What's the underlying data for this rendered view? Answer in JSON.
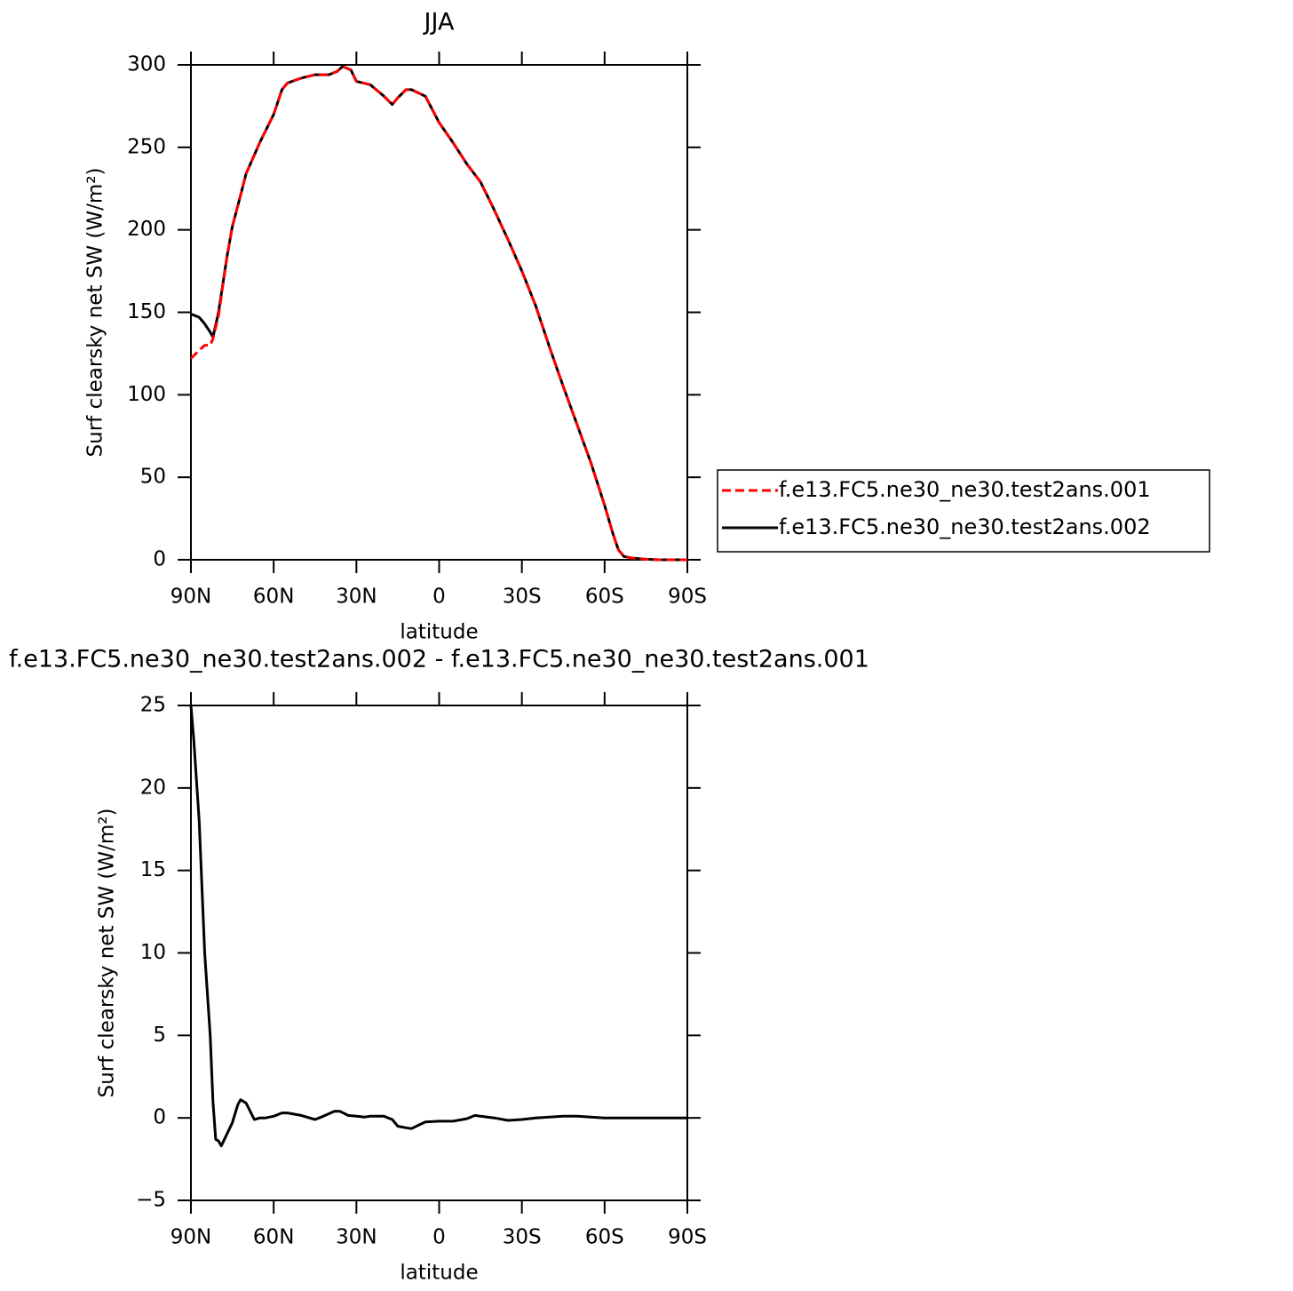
{
  "chart_data": [
    {
      "type": "line",
      "title": "JJA",
      "xlabel": "latitude",
      "ylabel": "Surf clearsky net SW (W/m²)",
      "xlim": [
        90,
        -90
      ],
      "xticks": [
        {
          "value": 90,
          "label": "90N"
        },
        {
          "value": 60,
          "label": "60N"
        },
        {
          "value": 30,
          "label": "30N"
        },
        0,
        {
          "value": -30,
          "label": "30S"
        },
        {
          "value": -60,
          "label": "60S"
        },
        {
          "value": -90,
          "label": "90S"
        }
      ],
      "ylim": [
        0,
        300
      ],
      "yticks": [
        0,
        50,
        100,
        150,
        200,
        250,
        300
      ],
      "legend": "right",
      "x": [
        90,
        87,
        85,
        83,
        82,
        80,
        77,
        75,
        72,
        70,
        65,
        60,
        57,
        55,
        50,
        45,
        40,
        37,
        35,
        32,
        30,
        25,
        20,
        17,
        15,
        12,
        10,
        5,
        0,
        -5,
        -10,
        -15,
        -20,
        -25,
        -30,
        -35,
        -40,
        -45,
        -50,
        -55,
        -60,
        -63,
        -65,
        -67,
        -70,
        -75,
        -80,
        -85,
        -90
      ],
      "series": [
        {
          "name": "f.e13.FC5.ne30_ne30.test2ans.001",
          "color": "#ff0000",
          "line_style": "dashed",
          "values": [
            122,
            127,
            130,
            130,
            134,
            148,
            183,
            202,
            221,
            234,
            253,
            270,
            285,
            289,
            292,
            294,
            294,
            296,
            299,
            297,
            290,
            288,
            281,
            276,
            280,
            285,
            285,
            281,
            265,
            253,
            240,
            229,
            212,
            194,
            175,
            154,
            129,
            105,
            82,
            59,
            33,
            16,
            6,
            2,
            1,
            0.3,
            0,
            0,
            0
          ]
        },
        {
          "name": "f.e13.FC5.ne30_ne30.test2ans.002",
          "color": "#000000",
          "line_style": "solid",
          "values": [
            149,
            147,
            143,
            138,
            135,
            150,
            183,
            202,
            221,
            234,
            253,
            270,
            285,
            289,
            292,
            294,
            294,
            296,
            299,
            297,
            290,
            288,
            281,
            276,
            280,
            285,
            285,
            281,
            265,
            253,
            240,
            229,
            212,
            194,
            175,
            154,
            129,
            105,
            82,
            59,
            33,
            16,
            6,
            2,
            1,
            0.3,
            0,
            0,
            0
          ]
        }
      ]
    },
    {
      "type": "line",
      "title": "f.e13.FC5.ne30_ne30.test2ans.002 - f.e13.FC5.ne30_ne30.test2ans.001",
      "xlabel": "latitude",
      "ylabel": "Surf clearsky net SW (W/m²)",
      "xlim": [
        90,
        -90
      ],
      "xticks": [
        {
          "value": 90,
          "label": "90N"
        },
        {
          "value": 60,
          "label": "60N"
        },
        {
          "value": 30,
          "label": "30N"
        },
        0,
        {
          "value": -30,
          "label": "30S"
        },
        {
          "value": -60,
          "label": "60S"
        },
        {
          "value": -90,
          "label": "90S"
        }
      ],
      "ylim": [
        -5,
        25
      ],
      "yticks": [
        {
          "value": -5,
          "label": "−5"
        },
        0,
        5,
        10,
        15,
        20,
        25
      ],
      "color": "#000000",
      "x": [
        90,
        89,
        87,
        85,
        83,
        82,
        81,
        80,
        79,
        77,
        75,
        73,
        72,
        70,
        67,
        65,
        63,
        60,
        57,
        55,
        50,
        45,
        42,
        38,
        36,
        33,
        30,
        27,
        25,
        20,
        17,
        15,
        12,
        10,
        7,
        5,
        0,
        -5,
        -10,
        -13,
        -15,
        -20,
        -25,
        -30,
        -35,
        -40,
        -45,
        -50,
        -55,
        -60,
        -70,
        -80,
        -90
      ],
      "values": [
        25,
        23,
        18,
        10,
        5,
        1,
        -1.3,
        -1.4,
        -1.7,
        -1,
        -0.3,
        0.8,
        1.1,
        0.9,
        -0.1,
        0,
        0,
        0.1,
        0.3,
        0.3,
        0.15,
        -0.1,
        0.1,
        0.4,
        0.4,
        0.15,
        0.1,
        0.05,
        0.1,
        0.1,
        -0.1,
        -0.5,
        -0.6,
        -0.65,
        -0.4,
        -0.25,
        -0.2,
        -0.2,
        -0.05,
        0.15,
        0.1,
        0,
        -0.15,
        -0.1,
        0,
        0.05,
        0.1,
        0.1,
        0.05,
        0,
        0,
        0,
        0
      ]
    }
  ]
}
